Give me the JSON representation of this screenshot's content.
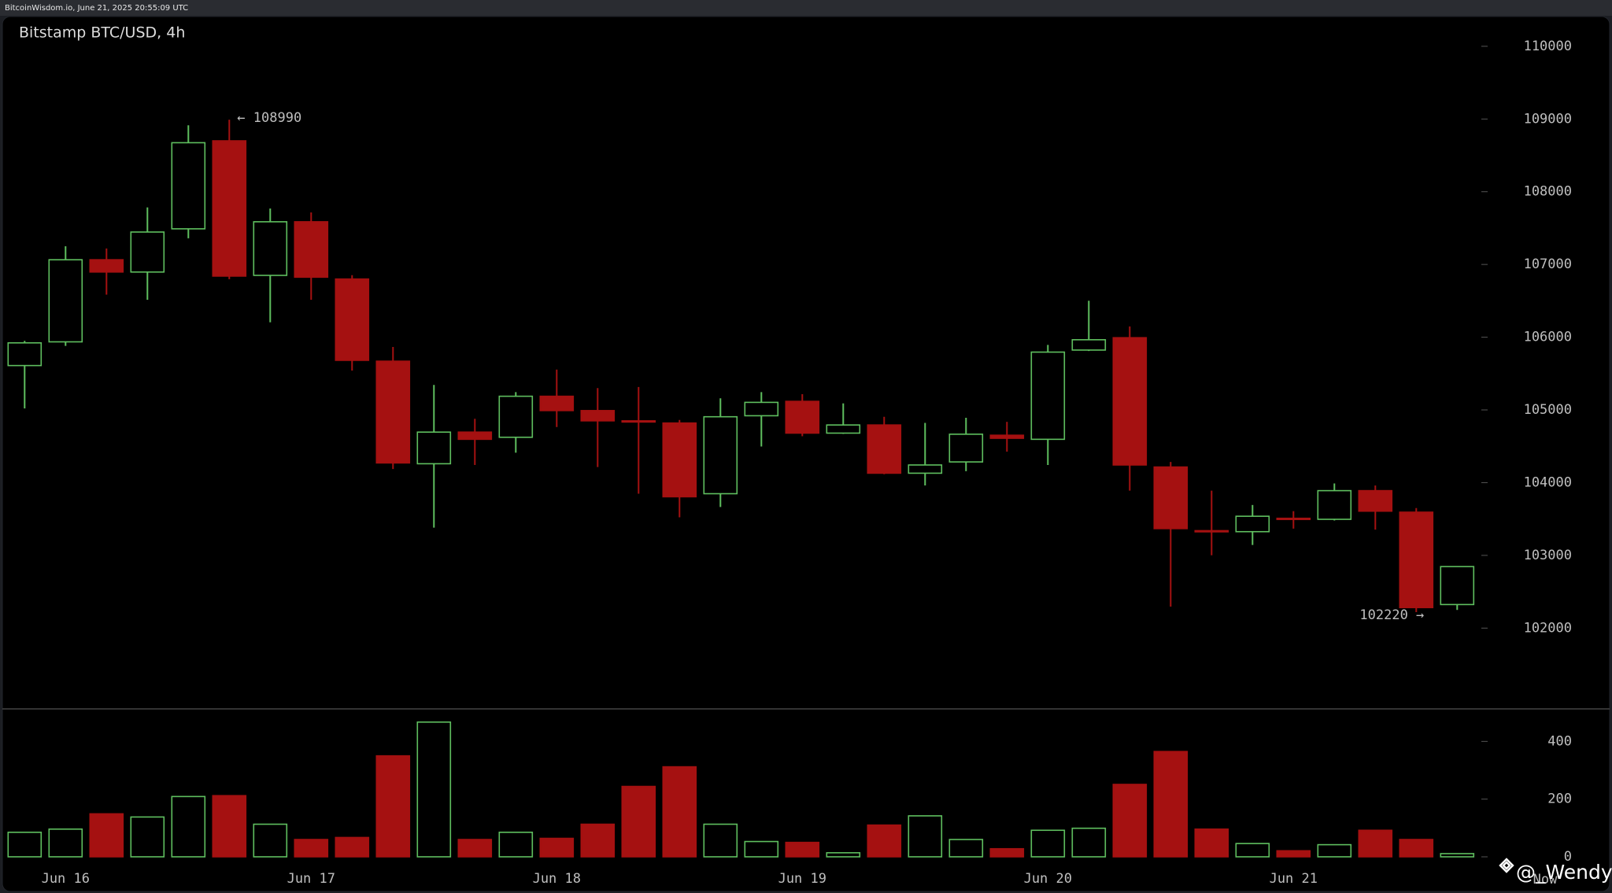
{
  "header": "BitcoinWisdom.io, June 21, 2025 20:55:09 UTC",
  "watermark": "@_Wendy",
  "chart_data": [
    {
      "type": "candlestick",
      "title": "Bitstamp BTC/USD, 4h",
      "categories": [
        null,
        "Jun 16",
        null,
        null,
        null,
        null,
        null,
        "Jun 17",
        null,
        null,
        null,
        null,
        null,
        "Jun 18",
        null,
        null,
        null,
        null,
        null,
        "Jun 19",
        null,
        null,
        null,
        null,
        null,
        "Jun 20",
        null,
        null,
        null,
        null,
        null,
        "Jun 21",
        null,
        null,
        null,
        null
      ],
      "open": [
        105610,
        105936,
        107065,
        106896,
        107490,
        108700,
        106850,
        107587,
        106800,
        105670,
        104260,
        104695,
        104624,
        105188,
        104991,
        104850,
        104820,
        103848,
        104920,
        105118,
        104681,
        104793,
        104130,
        104285,
        104652,
        104596,
        105823,
        105993,
        104215,
        103340,
        103326,
        103510,
        103496,
        103890,
        103594,
        102324
      ],
      "high": [
        105950,
        107250,
        107220,
        107785,
        108913,
        108990,
        107770,
        107715,
        106853,
        105866,
        105344,
        104878,
        105245,
        105555,
        105300,
        105315,
        104862,
        105160,
        105245,
        105217,
        105090,
        104906,
        104822,
        104892,
        104836,
        105894,
        106501,
        106148,
        104285,
        103890,
        103693,
        103608,
        103989,
        103961,
        103650,
        102846
      ],
      "low": [
        105020,
        105880,
        106585,
        106515,
        107360,
        106797,
        106205,
        106515,
        105541,
        104187,
        103382,
        104243,
        104412,
        104765,
        104215,
        103848,
        103524,
        103665,
        104497,
        104638,
        104670,
        104116,
        103961,
        104158,
        104426,
        104243,
        105810,
        103890,
        102296,
        103001,
        103143,
        103368,
        103480,
        103354,
        102220,
        102250
      ],
      "close": [
        105922,
        107065,
        106896,
        107446,
        108674,
        106840,
        107587,
        106825,
        105682,
        104271,
        104695,
        104596,
        105188,
        104991,
        104850,
        104836,
        103806,
        104906,
        105104,
        104681,
        104793,
        104130,
        104243,
        104666,
        104610,
        105795,
        105965,
        104243,
        103368,
        103326,
        103538,
        103496,
        103890,
        103608,
        102282,
        102846
      ],
      "up_color": "#5fbf5f",
      "down_color": "#a51111",
      "high_label": "← 108990",
      "low_label": "102220 →",
      "ylim": [
        100900,
        110420
      ],
      "yticks": [
        102000,
        103000,
        104000,
        105000,
        106000,
        107000,
        108000,
        109000,
        110000
      ]
    },
    {
      "type": "bar",
      "x_end_label": "Now",
      "values": [
        85,
        96,
        149,
        138,
        209,
        212,
        113,
        60,
        67,
        350,
        467,
        60,
        85,
        64,
        113,
        244,
        312,
        113,
        53,
        50,
        14,
        110,
        142,
        60,
        28,
        92,
        99,
        251,
        365,
        96,
        46,
        21,
        42,
        92,
        60,
        11
      ],
      "ylim": [
        0,
        510
      ],
      "yticks": [
        0,
        200,
        400
      ]
    }
  ]
}
